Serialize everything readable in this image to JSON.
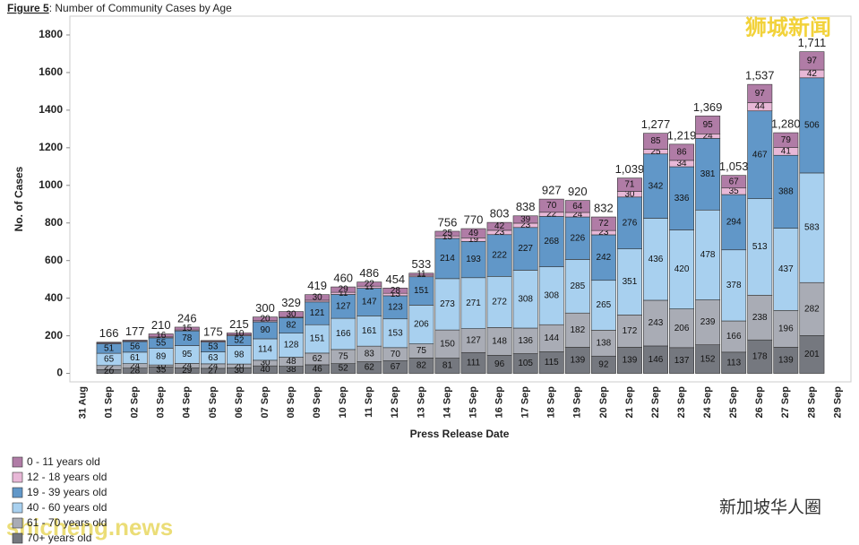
{
  "chart_data": {
    "type": "stacked_bar",
    "title_bold": "Figure 5",
    "title": ": Number of Community Cases by Age",
    "y_label": "No. of Cases",
    "x_label": "Press Release Date",
    "categories": [
      "31 Aug",
      "01 Sep",
      "02 Sep",
      "03 Sep",
      "04 Sep",
      "05 Sep",
      "06 Sep",
      "07 Sep",
      "08 Sep",
      "09 Sep",
      "10 Sep",
      "11 Sep",
      "12 Sep",
      "13 Sep",
      "14 Sep",
      "15 Sep",
      "16 Sep",
      "17 Sep",
      "18 Sep",
      "19 Sep",
      "20 Sep",
      "21 Sep",
      "22 Sep",
      "23 Sep",
      "24 Sep",
      "25 Sep",
      "26 Sep",
      "27 Sep",
      "28 Sep",
      "29 Sep"
    ],
    "series": [
      {
        "name": "70+ years old",
        "color": "#75787f",
        "values": [
          null,
          20,
          28,
          35,
          29,
          27,
          30,
          40,
          38,
          46,
          52,
          62,
          67,
          82,
          81,
          111,
          96,
          105,
          115,
          139,
          92,
          139,
          146,
          137,
          152,
          113,
          178,
          139,
          201,
          null
        ]
      },
      {
        "name": "61 - 70 years old",
        "color": "#a9acb5",
        "values": [
          null,
          22,
          24,
          10,
          24,
          24,
          20,
          30,
          48,
          62,
          75,
          83,
          70,
          75,
          150,
          127,
          148,
          136,
          144,
          182,
          138,
          172,
          243,
          206,
          239,
          166,
          238,
          196,
          282,
          null
        ]
      },
      {
        "name": "40 - 60 years old",
        "color": "#a8d0ef",
        "values": [
          null,
          65,
          61,
          89,
          95,
          63,
          98,
          114,
          128,
          151,
          166,
          161,
          153,
          206,
          273,
          271,
          272,
          308,
          308,
          285,
          265,
          351,
          436,
          420,
          478,
          378,
          513,
          437,
          583,
          null
        ]
      },
      {
        "name": "19 - 39 years old",
        "color": "#6197c8",
        "values": [
          null,
          51,
          56,
          55,
          78,
          53,
          52,
          90,
          82,
          121,
          127,
          147,
          123,
          151,
          214,
          193,
          222,
          227,
          268,
          226,
          242,
          276,
          342,
          336,
          381,
          294,
          467,
          388,
          506,
          null
        ]
      },
      {
        "name": "12 - 18 years old",
        "color": "#e8b8d7",
        "values": [
          null,
          4,
          4,
          5,
          5,
          4,
          5,
          6,
          3,
          9,
          11,
          11,
          13,
          8,
          13,
          19,
          23,
          23,
          22,
          24,
          23,
          30,
          25,
          34,
          24,
          35,
          44,
          41,
          42,
          null
        ]
      },
      {
        "name": "0 - 11 years old",
        "color": "#b07ca6",
        "values": [
          null,
          4,
          4,
          16,
          15,
          4,
          10,
          20,
          30,
          30,
          29,
          22,
          28,
          11,
          25,
          49,
          42,
          39,
          70,
          64,
          72,
          71,
          85,
          86,
          95,
          67,
          97,
          79,
          97,
          null
        ]
      }
    ],
    "totals": {
      "values": [
        null,
        166,
        177,
        210,
        246,
        175,
        215,
        300,
        329,
        419,
        460,
        486,
        454,
        533,
        756,
        770,
        803,
        838,
        927,
        920,
        832,
        1039,
        1277,
        1219,
        1369,
        1053,
        1537,
        1280,
        1711,
        null
      ],
      "value_labels": [
        null,
        "166",
        "177",
        "210",
        "246",
        "175",
        "215",
        "300",
        "329",
        "419",
        "460",
        "486",
        "454",
        "533",
        "756",
        "770",
        "803",
        "838",
        "927",
        "920",
        "832",
        "1,039",
        "1,277",
        "1,219",
        "1,369",
        "1,053",
        "1,537",
        "1,280",
        "1,711",
        null
      ]
    },
    "ylim": [
      -45,
      1900
    ],
    "yticks": [
      0,
      200,
      400,
      600,
      800,
      1000,
      1200,
      1400,
      1600,
      1800
    ],
    "grid": false,
    "legend": "bottom-left",
    "annotations": [
      "狮城新闻",
      "新加坡华人圈",
      "shicheng.news"
    ]
  }
}
